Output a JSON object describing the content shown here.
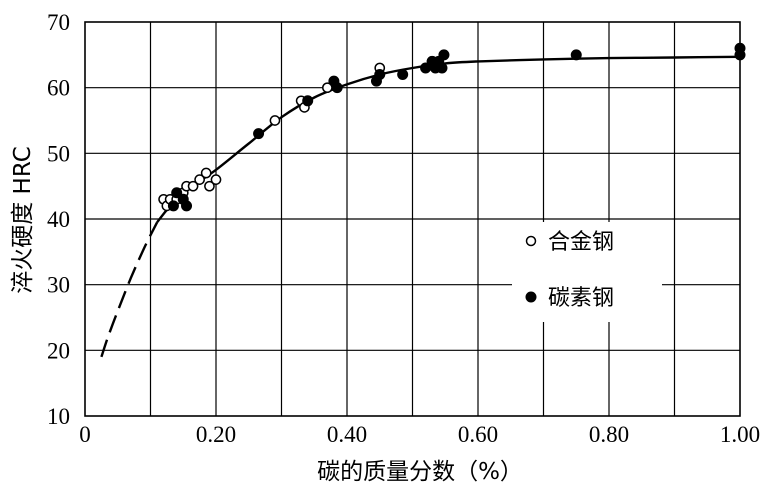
{
  "chart_data": {
    "type": "scatter",
    "title": "",
    "xlabel": "碳的质量分数（%）",
    "ylabel": "淬火硬度 HRC",
    "xlim": [
      0,
      1.0
    ],
    "ylim": [
      10,
      70
    ],
    "x_ticks": [
      "0",
      "0.20",
      "0.40",
      "0.60",
      "0.80",
      "1.00"
    ],
    "y_ticks": [
      "10",
      "20",
      "30",
      "40",
      "50",
      "60",
      "70"
    ],
    "grid": true,
    "legend_position": "center-right",
    "colors": {
      "alloy_steel": "#ffffff",
      "carbon_steel": "#000000",
      "curve": "#000000",
      "grid": "#000000"
    },
    "series": [
      {
        "name": "合金钢",
        "marker": "open-circle",
        "points": [
          {
            "x": 0.12,
            "y": 43
          },
          {
            "x": 0.125,
            "y": 42
          },
          {
            "x": 0.13,
            "y": 43
          },
          {
            "x": 0.14,
            "y": 43
          },
          {
            "x": 0.15,
            "y": 44
          },
          {
            "x": 0.155,
            "y": 45
          },
          {
            "x": 0.165,
            "y": 45
          },
          {
            "x": 0.175,
            "y": 46
          },
          {
            "x": 0.185,
            "y": 47
          },
          {
            "x": 0.19,
            "y": 45
          },
          {
            "x": 0.2,
            "y": 46
          },
          {
            "x": 0.29,
            "y": 55
          },
          {
            "x": 0.33,
            "y": 58
          },
          {
            "x": 0.335,
            "y": 57
          },
          {
            "x": 0.37,
            "y": 60
          },
          {
            "x": 0.45,
            "y": 63
          },
          {
            "x": 0.53,
            "y": 64
          }
        ]
      },
      {
        "name": "碳素钢",
        "marker": "filled-circle",
        "points": [
          {
            "x": 0.135,
            "y": 42
          },
          {
            "x": 0.14,
            "y": 44
          },
          {
            "x": 0.15,
            "y": 43
          },
          {
            "x": 0.155,
            "y": 42
          },
          {
            "x": 0.265,
            "y": 53
          },
          {
            "x": 0.34,
            "y": 58
          },
          {
            "x": 0.38,
            "y": 61
          },
          {
            "x": 0.385,
            "y": 60
          },
          {
            "x": 0.445,
            "y": 61
          },
          {
            "x": 0.45,
            "y": 62
          },
          {
            "x": 0.485,
            "y": 62
          },
          {
            "x": 0.52,
            "y": 63
          },
          {
            "x": 0.53,
            "y": 64
          },
          {
            "x": 0.535,
            "y": 63
          },
          {
            "x": 0.54,
            "y": 64
          },
          {
            "x": 0.545,
            "y": 63
          },
          {
            "x": 0.548,
            "y": 65
          },
          {
            "x": 0.75,
            "y": 65
          },
          {
            "x": 1.0,
            "y": 66
          },
          {
            "x": 1.0,
            "y": 65
          }
        ]
      }
    ],
    "curve": {
      "dashed": [
        {
          "x": 0.025,
          "y": 19
        },
        {
          "x": 0.035,
          "y": 22
        },
        {
          "x": 0.05,
          "y": 26
        },
        {
          "x": 0.07,
          "y": 31
        },
        {
          "x": 0.09,
          "y": 35.5
        },
        {
          "x": 0.11,
          "y": 39.5
        }
      ],
      "solid": [
        {
          "x": 0.11,
          "y": 39.5
        },
        {
          "x": 0.13,
          "y": 42
        },
        {
          "x": 0.15,
          "y": 44
        },
        {
          "x": 0.2,
          "y": 47.5
        },
        {
          "x": 0.25,
          "y": 51.5
        },
        {
          "x": 0.3,
          "y": 55.5
        },
        {
          "x": 0.35,
          "y": 58.5
        },
        {
          "x": 0.4,
          "y": 60.5
        },
        {
          "x": 0.45,
          "y": 62
        },
        {
          "x": 0.5,
          "y": 63
        },
        {
          "x": 0.55,
          "y": 63.7
        },
        {
          "x": 0.6,
          "y": 64
        },
        {
          "x": 0.7,
          "y": 64.3
        },
        {
          "x": 0.8,
          "y": 64.5
        },
        {
          "x": 0.9,
          "y": 64.6
        },
        {
          "x": 1.0,
          "y": 64.7
        }
      ]
    }
  }
}
